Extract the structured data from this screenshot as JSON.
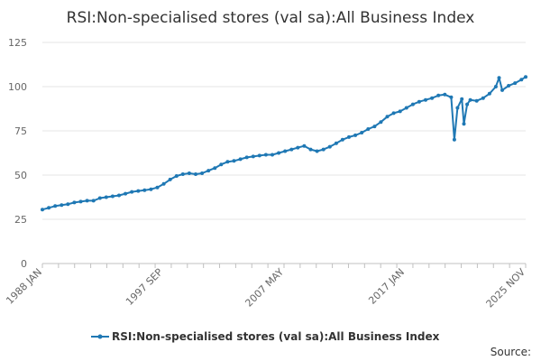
{
  "chart_data": {
    "type": "line",
    "title": "RSI:Non-specialised stores (val sa):All Business Index",
    "xlabel": "",
    "ylabel": "",
    "x_tick_labels": [
      "1988 JAN",
      "1997 SEP",
      "2007 MAY",
      "2017 JAN",
      "2025 NOV"
    ],
    "y_ticks": [
      0,
      25,
      50,
      75,
      100,
      125
    ],
    "ylim": [
      0,
      125
    ],
    "grid": true,
    "legend_placement": "bottom",
    "series": [
      {
        "name": "RSI:Non-specialised stores (val sa):All Business Index",
        "color": "#1f78b4",
        "points": [
          [
            "1988-01",
            30.5
          ],
          [
            "1988-07",
            31.5
          ],
          [
            "1989-01",
            32.5
          ],
          [
            "1989-07",
            33.0
          ],
          [
            "1990-01",
            33.5
          ],
          [
            "1990-07",
            34.5
          ],
          [
            "1991-01",
            35.0
          ],
          [
            "1991-07",
            35.5
          ],
          [
            "1992-01",
            35.5
          ],
          [
            "1992-07",
            37.0
          ],
          [
            "1993-01",
            37.5
          ],
          [
            "1993-07",
            38.0
          ],
          [
            "1994-01",
            38.5
          ],
          [
            "1994-07",
            39.5
          ],
          [
            "1995-01",
            40.5
          ],
          [
            "1995-07",
            41.0
          ],
          [
            "1996-01",
            41.5
          ],
          [
            "1996-07",
            42.0
          ],
          [
            "1997-01",
            43.0
          ],
          [
            "1997-07",
            45.0
          ],
          [
            "1998-01",
            47.5
          ],
          [
            "1998-07",
            49.5
          ],
          [
            "1999-01",
            50.5
          ],
          [
            "1999-07",
            51.0
          ],
          [
            "2000-01",
            50.5
          ],
          [
            "2000-07",
            51.0
          ],
          [
            "2001-01",
            52.5
          ],
          [
            "2001-07",
            54.0
          ],
          [
            "2002-01",
            56.0
          ],
          [
            "2002-07",
            57.5
          ],
          [
            "2003-01",
            58.0
          ],
          [
            "2003-07",
            59.0
          ],
          [
            "2004-01",
            60.0
          ],
          [
            "2004-07",
            60.5
          ],
          [
            "2005-01",
            61.0
          ],
          [
            "2005-07",
            61.5
          ],
          [
            "2006-01",
            61.5
          ],
          [
            "2006-07",
            62.5
          ],
          [
            "2007-01",
            63.5
          ],
          [
            "2007-07",
            64.5
          ],
          [
            "2008-01",
            65.5
          ],
          [
            "2008-07",
            66.5
          ],
          [
            "2009-01",
            64.5
          ],
          [
            "2009-07",
            63.5
          ],
          [
            "2010-01",
            64.5
          ],
          [
            "2010-07",
            66.0
          ],
          [
            "2011-01",
            68.0
          ],
          [
            "2011-07",
            70.0
          ],
          [
            "2012-01",
            71.5
          ],
          [
            "2012-07",
            72.5
          ],
          [
            "2013-01",
            74.0
          ],
          [
            "2013-07",
            76.0
          ],
          [
            "2014-01",
            77.5
          ],
          [
            "2014-07",
            80.0
          ],
          [
            "2015-01",
            83.0
          ],
          [
            "2015-07",
            85.0
          ],
          [
            "2016-01",
            86.0
          ],
          [
            "2016-07",
            88.0
          ],
          [
            "2017-01",
            90.0
          ],
          [
            "2017-07",
            91.5
          ],
          [
            "2018-01",
            92.5
          ],
          [
            "2018-07",
            93.5
          ],
          [
            "2019-01",
            95.0
          ],
          [
            "2019-07",
            95.5
          ],
          [
            "2020-01",
            94.0
          ],
          [
            "2020-04",
            70.0
          ],
          [
            "2020-07",
            88.0
          ],
          [
            "2020-11",
            93.0
          ],
          [
            "2021-01",
            79.0
          ],
          [
            "2021-04",
            90.0
          ],
          [
            "2021-07",
            92.5
          ],
          [
            "2022-01",
            92.0
          ],
          [
            "2022-07",
            93.5
          ],
          [
            "2023-01",
            96.0
          ],
          [
            "2023-07",
            100.0
          ],
          [
            "2023-10",
            105.0
          ],
          [
            "2024-01",
            98.0
          ],
          [
            "2024-07",
            100.5
          ],
          [
            "2025-01",
            102.0
          ],
          [
            "2025-07",
            104.0
          ],
          [
            "2025-11",
            105.5
          ]
        ]
      }
    ]
  },
  "source_label": "Source:"
}
